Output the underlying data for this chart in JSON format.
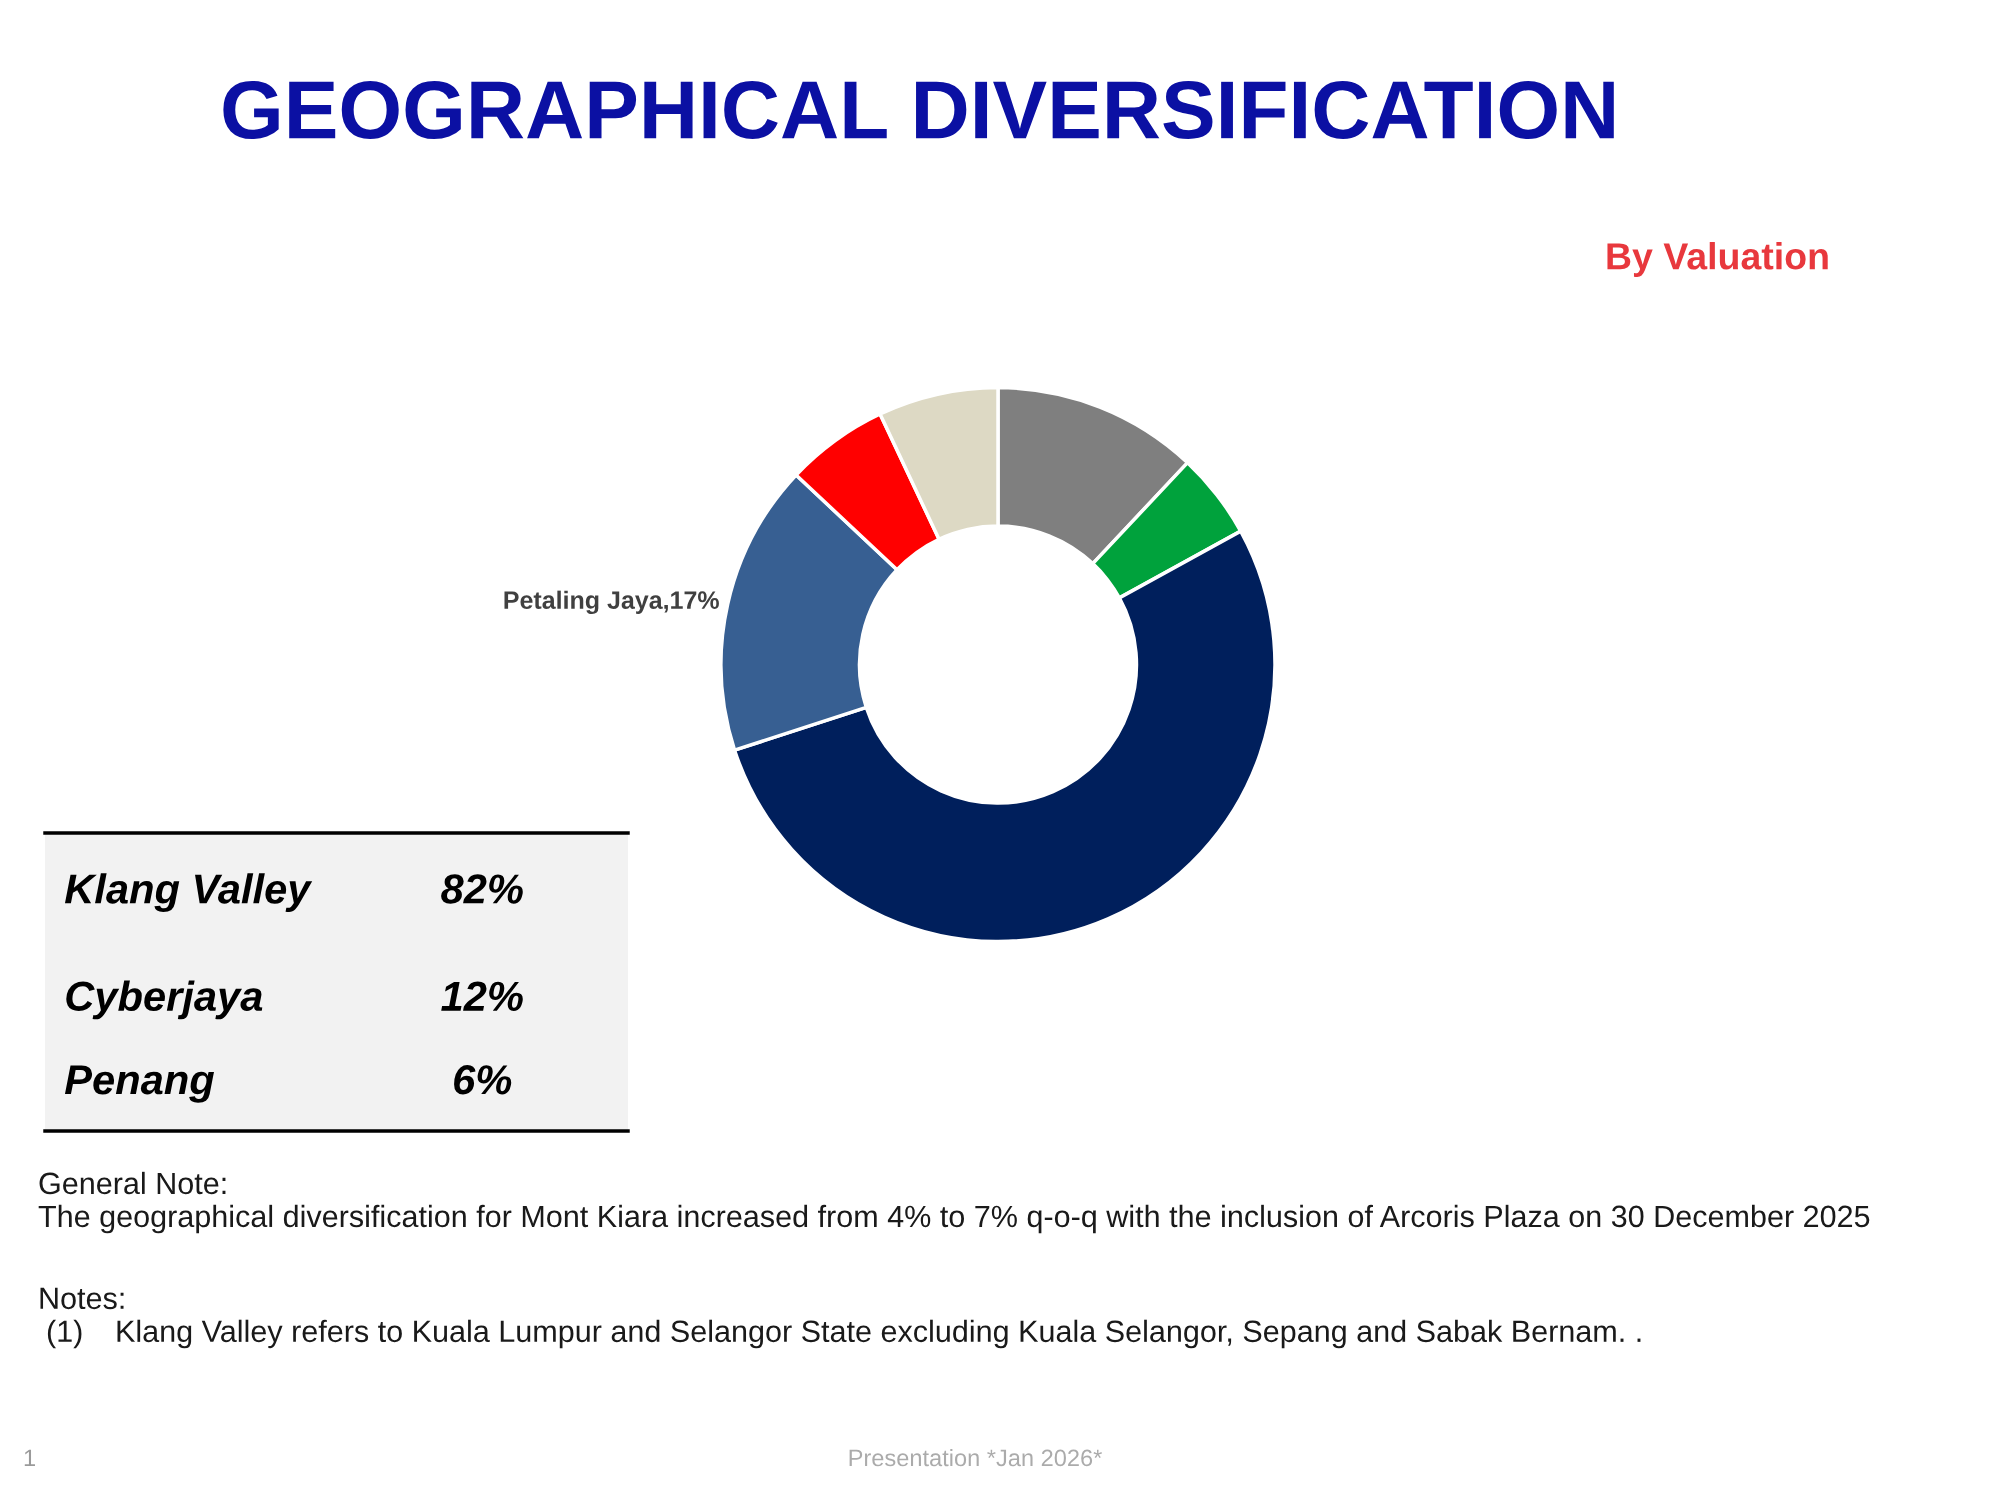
{
  "chart_data": [
    {
      "type": "donut",
      "title": "GEOGRAPHICAL DIVERSIFICATION",
      "subtitle": "By Valuation",
      "categories": [
        null,
        null,
        null,
        "Petaling Jaya",
        null,
        null
      ],
      "values": [
        12,
        5,
        53,
        17,
        6,
        7
      ],
      "colors": [
        "#7f7f7f",
        "#00a23c",
        "#001f5c",
        "#375f92",
        "#ff0000",
        "#ddd9c4"
      ],
      "value_labels": [
        null,
        null,
        null,
        "17%",
        null,
        null
      ],
      "annotations": [
        "General Note:",
        "The geographical diversification for Mont Kiara increased from 4% to 7% q-o-q with the inclusion of Arcoris Plaza on 30 December 2025",
        "Notes:",
        "(1)",
        "Klang Valley refers to Kuala Lumpur and Selangor State excluding Kuala Selangor, Sepang and Sabak Bernam. .",
        "Presentation *Jan 2026*",
        "1"
      ]
    },
    {
      "type": "other",
      "annotations": [
        "Klang Valley",
        "82%",
        "Cyberjaya",
        "12%",
        "Penang",
        "6%"
      ]
    }
  ]
}
